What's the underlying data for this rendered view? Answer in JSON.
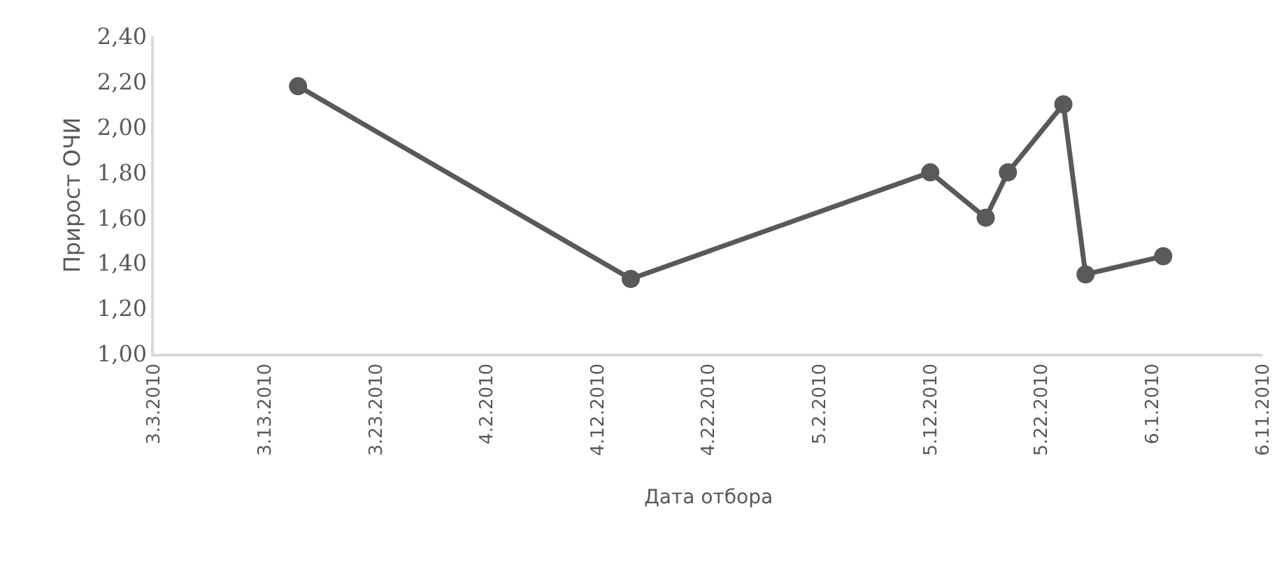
{
  "chart_data": {
    "type": "line",
    "xlabel": "Дата отбора",
    "ylabel": "Прирост ОЧИ",
    "x": [
      "2010-03-16",
      "2010-04-15",
      "2010-05-12",
      "2010-05-17",
      "2010-05-19",
      "2010-05-24",
      "2010-05-26",
      "2010-06-02"
    ],
    "series": [
      {
        "color": "#595959",
        "values": [
          2.18,
          1.33,
          1.8,
          1.6,
          1.8,
          2.1,
          1.35,
          1.43
        ]
      }
    ],
    "xlim": [
      "2010-03-03",
      "2010-06-11"
    ],
    "xticks": [
      {
        "value": "2010-03-03",
        "label": "3.3.2010"
      },
      {
        "value": "2010-03-13",
        "label": "3.13.2010"
      },
      {
        "value": "2010-03-23",
        "label": "3.23.2010"
      },
      {
        "value": "2010-04-02",
        "label": "4.2.2010"
      },
      {
        "value": "2010-04-12",
        "label": "4.12.2010"
      },
      {
        "value": "2010-04-22",
        "label": "4.22.2010"
      },
      {
        "value": "2010-05-02",
        "label": "5.2.2010"
      },
      {
        "value": "2010-05-12",
        "label": "5.12.2010"
      },
      {
        "value": "2010-05-22",
        "label": "5.22.2010"
      },
      {
        "value": "2010-06-01",
        "label": "6.1.2010"
      },
      {
        "value": "2010-06-11",
        "label": "6.11.2010"
      }
    ],
    "ylim": [
      1,
      2.4
    ],
    "yticks": [
      {
        "value": 1,
        "label": "1,00"
      },
      {
        "value": 1.2,
        "label": "1,20"
      },
      {
        "value": 1.4,
        "label": "1,40"
      },
      {
        "value": 1.6,
        "label": "1,60"
      },
      {
        "value": 1.8,
        "label": "1,80"
      },
      {
        "value": 2,
        "label": "2,00"
      },
      {
        "value": 2.2,
        "label": "2,20"
      },
      {
        "value": 2.4,
        "label": "2,40"
      }
    ],
    "marker": "circle",
    "line_style": "solid"
  }
}
